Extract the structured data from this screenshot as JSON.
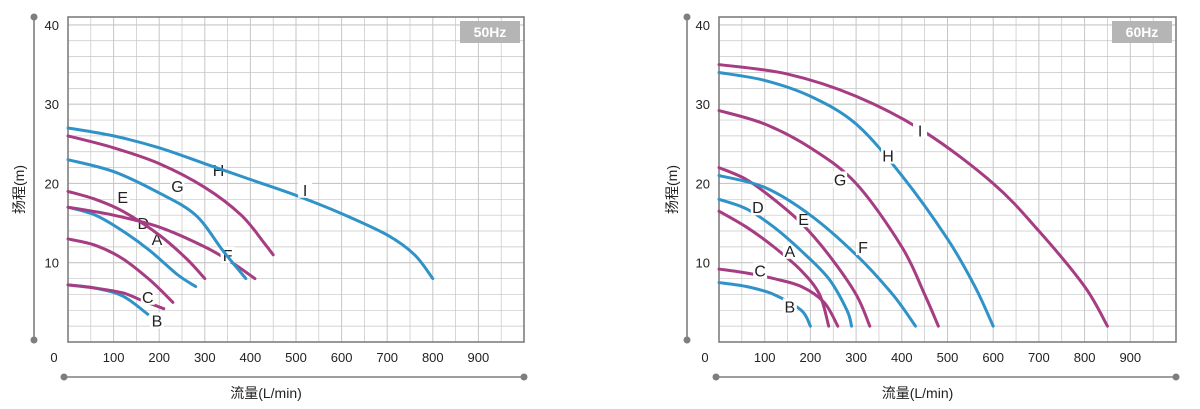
{
  "colors": {
    "blue": "#2f93c8",
    "magenta": "#a63d82",
    "grid": "#c6c6c6",
    "frame": "#7e7e7e",
    "badge": "#b5b5b5"
  },
  "chart_data": [
    {
      "type": "line",
      "frequency": "50Hz",
      "xlabel": "流量(L/min)",
      "ylabel": "扬程(m)",
      "xlim": [
        0,
        1000
      ],
      "ylim": [
        0,
        41
      ],
      "x_ticks": [
        "0",
        "100",
        "200",
        "300",
        "400",
        "500",
        "600",
        "700",
        "800",
        "900"
      ],
      "y_ticks": [
        "10",
        "20",
        "30",
        "40"
      ],
      "grid": true,
      "series": [
        {
          "name": "A",
          "color": "magenta",
          "label_at": [
            195,
            12.5
          ],
          "points": [
            [
              0,
              13
            ],
            [
              60,
              12.2
            ],
            [
              120,
              10.5
            ],
            [
              180,
              7.8
            ],
            [
              230,
              5
            ]
          ]
        },
        {
          "name": "B",
          "color": "blue",
          "label_at": [
            195,
            2.2
          ],
          "points": [
            [
              0,
              7.2
            ],
            [
              60,
              6.8
            ],
            [
              120,
              5.8
            ],
            [
              175,
              3.5
            ]
          ]
        },
        {
          "name": "C",
          "color": "magenta",
          "label_at": [
            175,
            5.2
          ],
          "points": [
            [
              0,
              7.2
            ],
            [
              60,
              6.8
            ],
            [
              120,
              6.2
            ],
            [
              160,
              5.3
            ],
            [
              210,
              4.2
            ]
          ]
        },
        {
          "name": "D",
          "color": "blue",
          "label_at": [
            165,
            14.5
          ],
          "points": [
            [
              0,
              17
            ],
            [
              60,
              16
            ],
            [
              120,
              14
            ],
            [
              180,
              11.5
            ],
            [
              240,
              8.5
            ],
            [
              280,
              7
            ]
          ]
        },
        {
          "name": "E",
          "color": "magenta",
          "label_at": [
            120,
            17.8
          ],
          "points": [
            [
              0,
              19
            ],
            [
              60,
              18
            ],
            [
              120,
              16.5
            ],
            [
              200,
              13.5
            ],
            [
              260,
              10.5
            ],
            [
              300,
              8
            ]
          ]
        },
        {
          "name": "F",
          "color": "magenta",
          "label_at": [
            350,
            10.5
          ],
          "points": [
            [
              0,
              17
            ],
            [
              100,
              16
            ],
            [
              200,
              14.5
            ],
            [
              300,
              12
            ],
            [
              360,
              10
            ],
            [
              410,
              8
            ]
          ]
        },
        {
          "name": "G",
          "color": "blue",
          "label_at": [
            240,
            19.2
          ],
          "points": [
            [
              0,
              23
            ],
            [
              100,
              21.5
            ],
            [
              200,
              18.8
            ],
            [
              280,
              16
            ],
            [
              340,
              11.5
            ],
            [
              390,
              8
            ]
          ]
        },
        {
          "name": "H",
          "color": "magenta",
          "label_at": [
            330,
            21.2
          ],
          "points": [
            [
              0,
              26
            ],
            [
              100,
              24.5
            ],
            [
              200,
              22.5
            ],
            [
              300,
              19.5
            ],
            [
              380,
              16
            ],
            [
              430,
              12.5
            ],
            [
              450,
              11
            ]
          ]
        },
        {
          "name": "I",
          "color": "blue",
          "label_at": [
            520,
            18.7
          ],
          "points": [
            [
              0,
              27
            ],
            [
              100,
              26
            ],
            [
              200,
              24.5
            ],
            [
              300,
              22.5
            ],
            [
              400,
              20.5
            ],
            [
              500,
              18.5
            ],
            [
              600,
              16.2
            ],
            [
              700,
              13.5
            ],
            [
              760,
              11
            ],
            [
              800,
              8
            ]
          ]
        }
      ]
    },
    {
      "type": "line",
      "frequency": "60Hz",
      "xlabel": "流量(L/min)",
      "ylabel": "扬程(m)",
      "xlim": [
        0,
        1000
      ],
      "ylim": [
        0,
        41
      ],
      "x_ticks": [
        "0",
        "100",
        "200",
        "300",
        "400",
        "500",
        "600",
        "700",
        "800",
        "900"
      ],
      "y_ticks": [
        "10",
        "20",
        "30",
        "40"
      ],
      "grid": true,
      "series": [
        {
          "name": "A",
          "color": "magenta",
          "label_at": [
            155,
            11
          ],
          "points": [
            [
              0,
              16.5
            ],
            [
              60,
              14.5
            ],
            [
              120,
              12
            ],
            [
              180,
              9
            ],
            [
              220,
              6
            ],
            [
              240,
              2
            ]
          ]
        },
        {
          "name": "B",
          "color": "blue",
          "label_at": [
            155,
            4
          ],
          "points": [
            [
              0,
              7.5
            ],
            [
              60,
              7
            ],
            [
              120,
              6
            ],
            [
              180,
              4
            ],
            [
              200,
              2
            ]
          ]
        },
        {
          "name": "C",
          "color": "magenta",
          "label_at": [
            90,
            8.5
          ],
          "points": [
            [
              0,
              9.2
            ],
            [
              60,
              8.7
            ],
            [
              120,
              8
            ],
            [
              180,
              7
            ],
            [
              230,
              5
            ],
            [
              260,
              2
            ]
          ]
        },
        {
          "name": "D",
          "color": "blue",
          "label_at": [
            85,
            16.5
          ],
          "points": [
            [
              0,
              18
            ],
            [
              60,
              16.8
            ],
            [
              120,
              14.5
            ],
            [
              180,
              11.5
            ],
            [
              240,
              8
            ],
            [
              280,
              4
            ],
            [
              290,
              2
            ]
          ]
        },
        {
          "name": "E",
          "color": "magenta",
          "label_at": [
            185,
            15
          ],
          "points": [
            [
              0,
              22
            ],
            [
              60,
              20.5
            ],
            [
              120,
              18
            ],
            [
              180,
              15
            ],
            [
              240,
              11
            ],
            [
              300,
              6
            ],
            [
              330,
              2
            ]
          ]
        },
        {
          "name": "F",
          "color": "blue",
          "label_at": [
            315,
            11.5
          ],
          "points": [
            [
              0,
              21
            ],
            [
              100,
              19.5
            ],
            [
              200,
              16
            ],
            [
              300,
              11
            ],
            [
              380,
              6
            ],
            [
              430,
              2
            ]
          ]
        },
        {
          "name": "G",
          "color": "magenta",
          "label_at": [
            265,
            20
          ],
          "points": [
            [
              0,
              29.2
            ],
            [
              100,
              27.5
            ],
            [
              200,
              24.5
            ],
            [
              300,
              20
            ],
            [
              400,
              12
            ],
            [
              450,
              6
            ],
            [
              480,
              2
            ]
          ]
        },
        {
          "name": "H",
          "color": "blue",
          "label_at": [
            370,
            23
          ],
          "points": [
            [
              0,
              34
            ],
            [
              100,
              33
            ],
            [
              200,
              31
            ],
            [
              300,
              27.5
            ],
            [
              400,
              21
            ],
            [
              500,
              13
            ],
            [
              560,
              7
            ],
            [
              600,
              2
            ]
          ]
        },
        {
          "name": "I",
          "color": "magenta",
          "label_at": [
            440,
            26.2
          ],
          "points": [
            [
              0,
              35
            ],
            [
              150,
              33.8
            ],
            [
              300,
              31
            ],
            [
              450,
              26.5
            ],
            [
              600,
              20
            ],
            [
              700,
              14
            ],
            [
              800,
              7
            ],
            [
              850,
              2
            ]
          ]
        }
      ]
    }
  ]
}
